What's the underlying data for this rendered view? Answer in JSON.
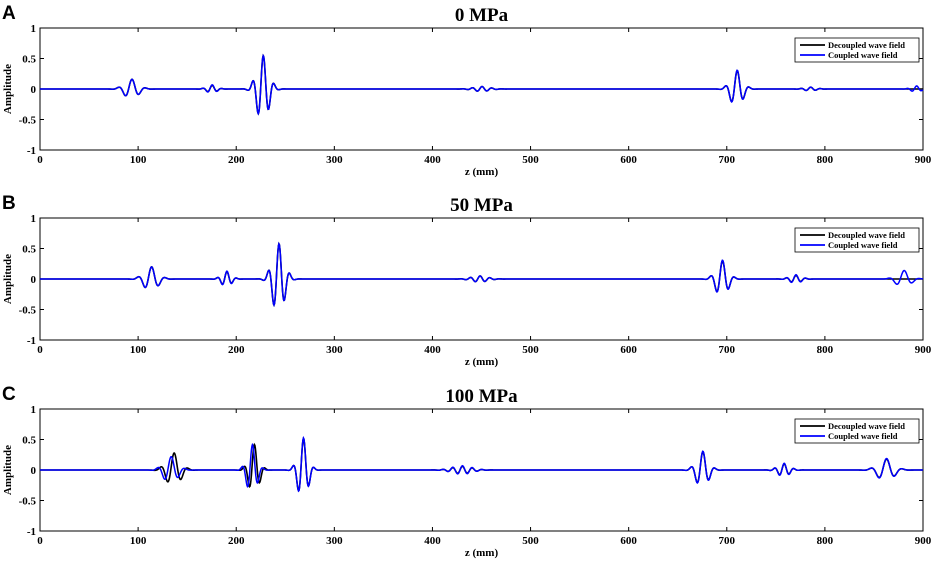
{
  "chart_data": [
    {
      "type": "line",
      "panel_letter": "A",
      "title": "0 MPa",
      "xlabel": "z (mm)",
      "ylabel": "Amplitude",
      "xlim": [
        0,
        900
      ],
      "ylim": [
        -1,
        1
      ],
      "xticks": [
        "0",
        "100",
        "200",
        "300",
        "400",
        "500",
        "600",
        "700",
        "800",
        "900"
      ],
      "yticks": [
        "1",
        "0.5",
        "0",
        "-0.5",
        "-1"
      ],
      "grid": false,
      "legend_position": "top-right",
      "series": [
        {
          "name": "Decoupled wave field",
          "color": "#000000",
          "packets": [
            {
              "c": 93,
              "a": 0.16,
              "w": 7,
              "f": 0.07
            },
            {
              "c": 175,
              "a": 0.06,
              "w": 5,
              "f": 0.1
            },
            {
              "c": 227,
              "a": 0.55,
              "w": 6,
              "f": 0.09
            },
            {
              "c": 450,
              "a": 0.04,
              "w": 8,
              "f": 0.1
            },
            {
              "c": 710,
              "a": 0.3,
              "w": 6,
              "f": 0.08
            },
            {
              "c": 785,
              "a": 0.03,
              "w": 6,
              "f": 0.1
            }
          ]
        },
        {
          "name": "Coupled wave field",
          "color": "#0000ff",
          "packets": [
            {
              "c": 93,
              "a": 0.16,
              "w": 7,
              "f": 0.07
            },
            {
              "c": 175,
              "a": 0.07,
              "w": 5,
              "f": 0.1
            },
            {
              "c": 227,
              "a": 0.55,
              "w": 6,
              "f": 0.09
            },
            {
              "c": 450,
              "a": 0.04,
              "w": 8,
              "f": 0.1
            },
            {
              "c": 710,
              "a": 0.31,
              "w": 6,
              "f": 0.08
            },
            {
              "c": 785,
              "a": 0.03,
              "w": 6,
              "f": 0.1
            },
            {
              "c": 893,
              "a": 0.05,
              "w": 5,
              "f": 0.1
            }
          ]
        }
      ]
    },
    {
      "type": "line",
      "panel_letter": "B",
      "title": "50 MPa",
      "xlabel": "z (mm)",
      "ylabel": "Amplitude",
      "xlim": [
        0,
        900
      ],
      "ylim": [
        -1,
        1
      ],
      "xticks": [
        "0",
        "100",
        "200",
        "300",
        "400",
        "500",
        "600",
        "700",
        "800",
        "900"
      ],
      "yticks": [
        "1",
        "0.5",
        "0",
        "-0.5",
        "-1"
      ],
      "grid": false,
      "legend_position": "top-right",
      "series": [
        {
          "name": "Decoupled wave field",
          "color": "#000000",
          "packets": [
            {
              "c": 113,
              "a": 0.2,
              "w": 7,
              "f": 0.07
            },
            {
              "c": 190,
              "a": 0.12,
              "w": 5,
              "f": 0.1
            },
            {
              "c": 243,
              "a": 0.58,
              "w": 6,
              "f": 0.09
            },
            {
              "c": 448,
              "a": 0.05,
              "w": 8,
              "f": 0.1
            },
            {
              "c": 695,
              "a": 0.3,
              "w": 6,
              "f": 0.08
            },
            {
              "c": 770,
              "a": 0.06,
              "w": 6,
              "f": 0.1
            }
          ]
        },
        {
          "name": "Coupled wave field",
          "color": "#0000ff",
          "packets": [
            {
              "c": 113,
              "a": 0.2,
              "w": 7,
              "f": 0.07
            },
            {
              "c": 190,
              "a": 0.13,
              "w": 5,
              "f": 0.1
            },
            {
              "c": 243,
              "a": 0.58,
              "w": 6,
              "f": 0.09
            },
            {
              "c": 448,
              "a": 0.05,
              "w": 8,
              "f": 0.1
            },
            {
              "c": 695,
              "a": 0.31,
              "w": 6,
              "f": 0.08
            },
            {
              "c": 770,
              "a": 0.07,
              "w": 6,
              "f": 0.1
            },
            {
              "c": 880,
              "a": 0.14,
              "w": 7,
              "f": 0.06
            }
          ]
        }
      ]
    },
    {
      "type": "line",
      "panel_letter": "C",
      "title": "100 MPa",
      "xlabel": "z (mm)",
      "ylabel": "Amplitude",
      "xlim": [
        0,
        900
      ],
      "ylim": [
        -1,
        1
      ],
      "xticks": [
        "0",
        "100",
        "200",
        "300",
        "400",
        "500",
        "600",
        "700",
        "800",
        "900"
      ],
      "yticks": [
        "1",
        "0.5",
        "0",
        "-0.5",
        "-1"
      ],
      "grid": false,
      "legend_position": "top-right",
      "series": [
        {
          "name": "Decoupled wave field",
          "color": "#000000",
          "packets": [
            {
              "c": 136,
              "a": 0.28,
              "w": 7,
              "f": 0.07
            },
            {
              "c": 218,
              "a": 0.42,
              "w": 5,
              "f": 0.09
            },
            {
              "c": 268,
              "a": 0.52,
              "w": 5,
              "f": 0.09
            },
            {
              "c": 430,
              "a": 0.06,
              "w": 10,
              "f": 0.1
            },
            {
              "c": 675,
              "a": 0.3,
              "w": 6,
              "f": 0.08
            },
            {
              "c": 758,
              "a": 0.1,
              "w": 6,
              "f": 0.1
            },
            {
              "c": 862,
              "a": 0.18,
              "w": 8,
              "f": 0.06
            }
          ]
        },
        {
          "name": "Coupled wave field",
          "color": "#0000ff",
          "packets": [
            {
              "c": 133,
              "a": 0.22,
              "w": 7,
              "f": 0.07
            },
            {
              "c": 216,
              "a": 0.42,
              "w": 5,
              "f": 0.09
            },
            {
              "c": 268,
              "a": 0.53,
              "w": 5,
              "f": 0.09
            },
            {
              "c": 430,
              "a": 0.07,
              "w": 10,
              "f": 0.1
            },
            {
              "c": 675,
              "a": 0.31,
              "w": 6,
              "f": 0.08
            },
            {
              "c": 758,
              "a": 0.11,
              "w": 6,
              "f": 0.1
            },
            {
              "c": 862,
              "a": 0.19,
              "w": 8,
              "f": 0.06
            }
          ]
        }
      ]
    }
  ]
}
